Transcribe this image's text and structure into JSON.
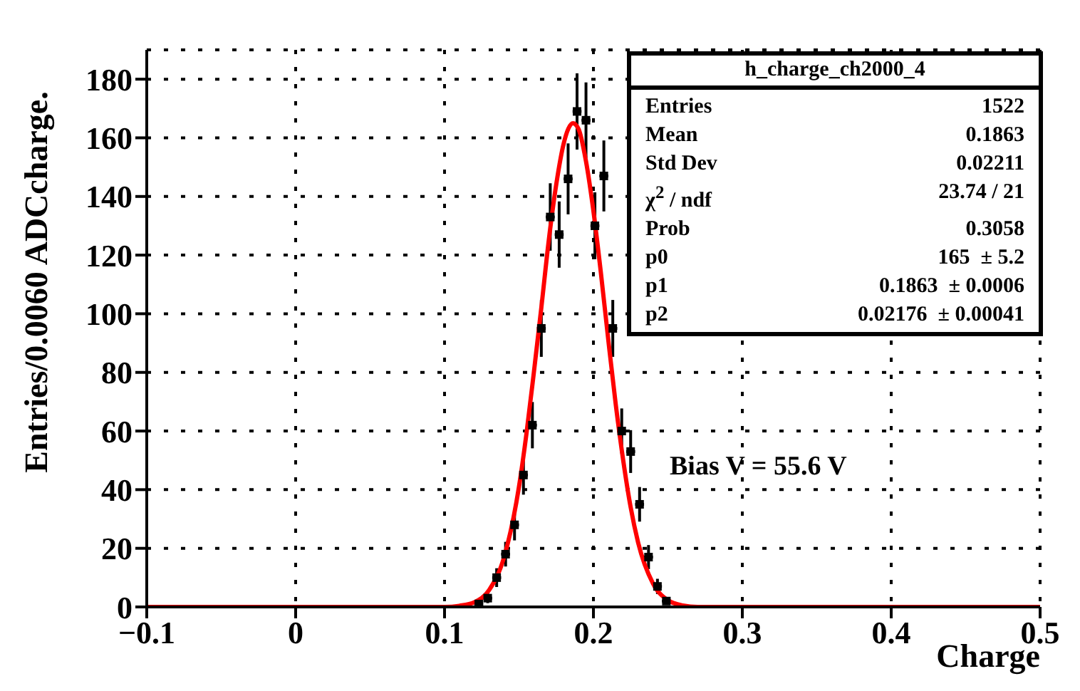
{
  "chart_data": {
    "type": "scatter",
    "xlabel": "Charge",
    "ylabel": "Entries/0.0060 ADCcharge.",
    "xlim": [
      -0.1,
      0.5
    ],
    "xticks": [
      -0.1,
      0,
      0.1,
      0.2,
      0.3,
      0.4,
      0.5
    ],
    "ylim": [
      0,
      190
    ],
    "yticks": [
      0,
      20,
      40,
      60,
      80,
      100,
      120,
      140,
      160,
      180
    ],
    "grid": true,
    "legend": false,
    "annotations": [
      "h_charge_ch2000_4",
      "Entries",
      "1522",
      "Mean",
      "0.1863",
      "Std Dev",
      "0.02211",
      "χ$^{2}$ / ndf",
      "23.74 / 21",
      "Prob",
      "0.3058",
      "p0",
      "165  ± 5.2",
      "p1",
      "0.1863  ± 0.0006",
      "p2",
      "0.02176  ± 0.00041",
      "Bias V = 55.6 V"
    ],
    "series": [
      {
        "color": "#000000",
        "x": [
          0.123,
          0.129,
          0.135,
          0.141,
          0.147,
          0.153,
          0.159,
          0.165,
          0.171,
          0.177,
          0.183,
          0.189,
          0.195,
          0.201,
          0.207,
          0.213,
          0.219,
          0.225,
          0.231,
          0.237,
          0.243,
          0.249
        ],
        "values": [
          1,
          3,
          10,
          18,
          28,
          45,
          62,
          95,
          133,
          127,
          146,
          169,
          166,
          130,
          147,
          95,
          60,
          53,
          35,
          17,
          7,
          2
        ],
        "errors": [
          null,
          1.7,
          3.2,
          4.2,
          5.3,
          6.7,
          7.9,
          9.7,
          11.5,
          11.3,
          12.1,
          13,
          12.9,
          11.4,
          12.1,
          9.7,
          7.7,
          7.3,
          5.9,
          4.1,
          2.6,
          null
        ],
        "xerrors": [
          0.003,
          0.003,
          0.003,
          0.003,
          0.003,
          0.003,
          0.003,
          0.003,
          0.003,
          0.003,
          0.003,
          0.003,
          0.003,
          0.003,
          0.003,
          0.003,
          0.003,
          0.003,
          0.003,
          0.003,
          0.003,
          0.003
        ]
      },
      {
        "type": "line",
        "color": "#ff0000",
        "x": [
          -0.1,
          0.1,
          0.11,
          0.12,
          0.13,
          0.14,
          0.15,
          0.155,
          0.16,
          0.165,
          0.17,
          0.175,
          0.18,
          0.1863,
          0.19,
          0.195,
          0.2,
          0.205,
          0.21,
          0.215,
          0.22,
          0.225,
          0.23,
          0.24,
          0.25,
          0.26,
          0.27,
          0.5
        ],
        "values": [
          0,
          0,
          0.4,
          1.6,
          5.8,
          17,
          41,
          59,
          80,
          102,
          125,
          144,
          158,
          165,
          163,
          152,
          135,
          114,
          91,
          69,
          50,
          34,
          22,
          8,
          2.3,
          0.5,
          0,
          0
        ]
      }
    ]
  }
}
